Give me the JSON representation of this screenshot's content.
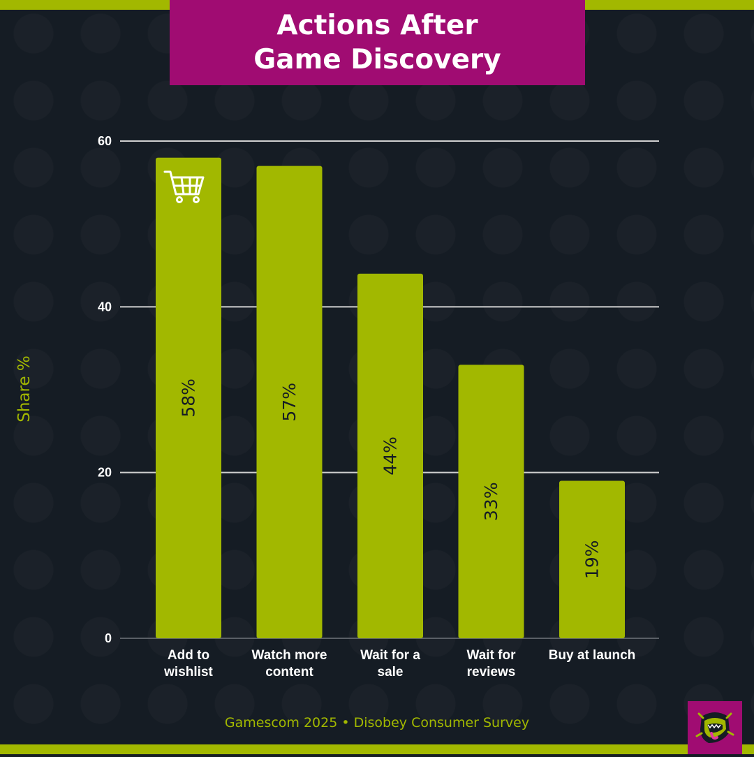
{
  "title": "Actions After\nGame Discovery",
  "footer": "Gamescom 2025 • Disobey Consumer Survey",
  "colors": {
    "background": "#151c24",
    "accent": "#a2b800",
    "title_box": "#a00c72",
    "grid": "#d0d0d0",
    "text": "#ffffff",
    "bar_label": "#151c24"
  },
  "icons": {
    "bar_icon": "shopping-cart-icon",
    "brand_logo": "monster-mouth-logo-icon"
  },
  "chart_data": {
    "type": "bar",
    "categories": [
      "Add to wishlist",
      "Watch more content",
      "Wait for a sale",
      "Wait for reviews",
      "Buy at launch"
    ],
    "category_labels": [
      [
        "Add to",
        "wishlist"
      ],
      [
        "Watch more",
        "content"
      ],
      [
        "Wait for a",
        "sale"
      ],
      [
        "Wait for",
        "reviews"
      ],
      [
        "Buy at launch"
      ]
    ],
    "values": [
      58,
      57,
      44,
      33,
      19
    ],
    "data_labels": [
      "58%",
      "57%",
      "44%",
      "33%",
      "19%"
    ],
    "ylabel": "Share %",
    "ylim": [
      0,
      60
    ],
    "yticks": [
      0,
      20,
      40,
      60
    ],
    "grid": true,
    "legend": "none"
  }
}
